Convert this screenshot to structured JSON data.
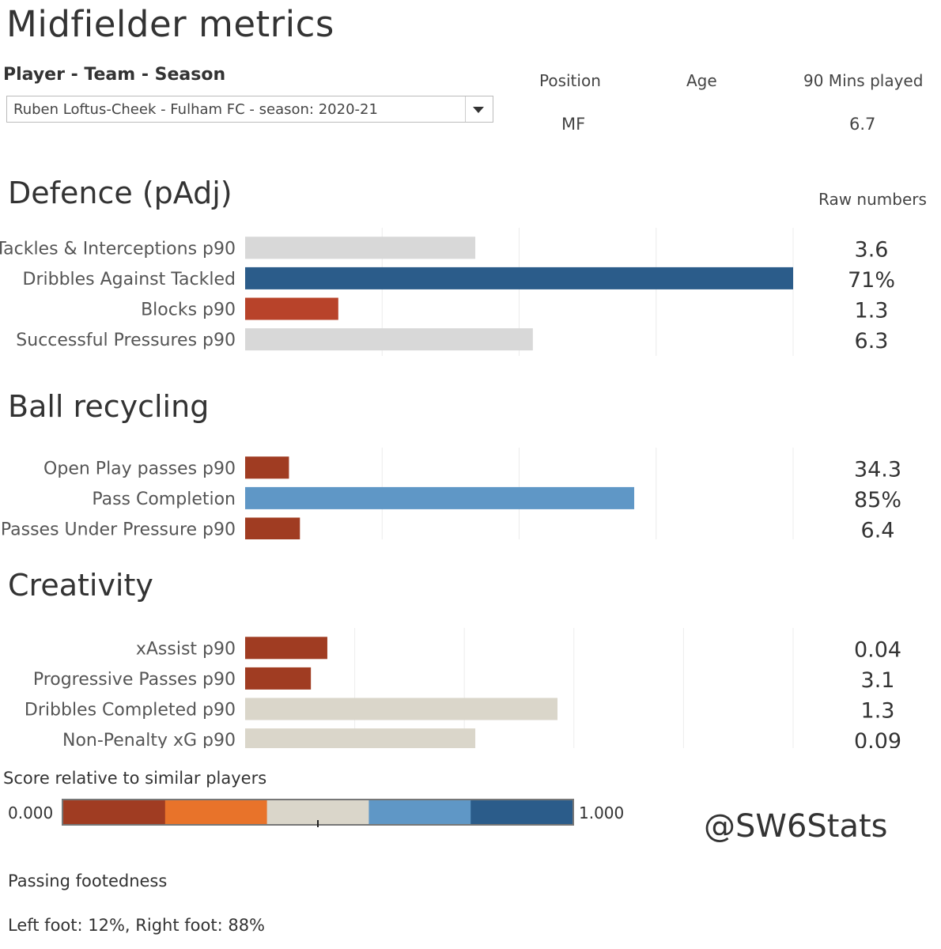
{
  "title": "Midfielder metrics",
  "selector": {
    "label": "Player - Team - Season",
    "value": "Ruben Loftus-Cheek - Fulham FC - season: 2020-21"
  },
  "info": {
    "position_label": "Position",
    "position_value": "MF",
    "age_label": "Age",
    "age_value": "",
    "mins_label": "90 Mins played",
    "mins_value": "6.7"
  },
  "raw_numbers_label": "Raw numbers",
  "colors": {
    "dark_red": "#A03C22",
    "orange": "#E8732A",
    "neutral_grey": "#D8D8D8",
    "neutral_beige": "#DAD6CA",
    "light_blue": "#5F97C6",
    "dark_blue": "#2B5C8A"
  },
  "chart_data": [
    {
      "type": "bar",
      "orientation": "horizontal",
      "title": "Defence (pAdj)",
      "xlim": [
        0,
        1
      ],
      "categories": [
        "Tackles & Interceptions p90",
        "Dribbles Against Tackled",
        "Blocks p90",
        "Successful Pressures p90"
      ],
      "values": [
        0.42,
        1.0,
        0.17,
        0.525
      ],
      "raw_values": [
        "3.6",
        "71%",
        "1.3",
        "6.3"
      ],
      "colors": [
        "#D8D8D8",
        "#2B5C8A",
        "#B8432A",
        "#D8D8D8"
      ]
    },
    {
      "type": "bar",
      "orientation": "horizontal",
      "title": "Ball recycling",
      "xlim": [
        0,
        1
      ],
      "categories": [
        "Open Play passes p90",
        "Pass Completion",
        "Passes Under Pressure p90"
      ],
      "values": [
        0.08,
        0.71,
        0.1
      ],
      "raw_values": [
        "34.3",
        "85%",
        "6.4"
      ],
      "colors": [
        "#A03C22",
        "#5F97C6",
        "#A03C22"
      ]
    },
    {
      "type": "bar",
      "orientation": "horizontal",
      "title": "Creativity",
      "xlim": [
        0,
        1
      ],
      "categories": [
        "xAssist p90",
        "Progressive Passes p90",
        "Dribbles Completed p90",
        "Non-Penalty xG p90"
      ],
      "values": [
        0.15,
        0.12,
        0.57,
        0.42
      ],
      "raw_values": [
        "0.04",
        "3.1",
        "1.3",
        "0.09"
      ],
      "colors": [
        "#A03C22",
        "#A03C22",
        "#DAD6CA",
        "#DAD6CA"
      ]
    }
  ],
  "legend": {
    "title": "Score relative to similar players",
    "min_label": "0.000",
    "max_label": "1.000",
    "segment_colors": [
      "#A03C22",
      "#E8732A",
      "#DAD6CA",
      "#5F97C6",
      "#2B5C8A"
    ],
    "marker_value": 0.5
  },
  "handle": "@SW6Stats",
  "footedness": {
    "label": "Passing footedness",
    "value": "Left foot: 12%, Right foot: 88%"
  }
}
